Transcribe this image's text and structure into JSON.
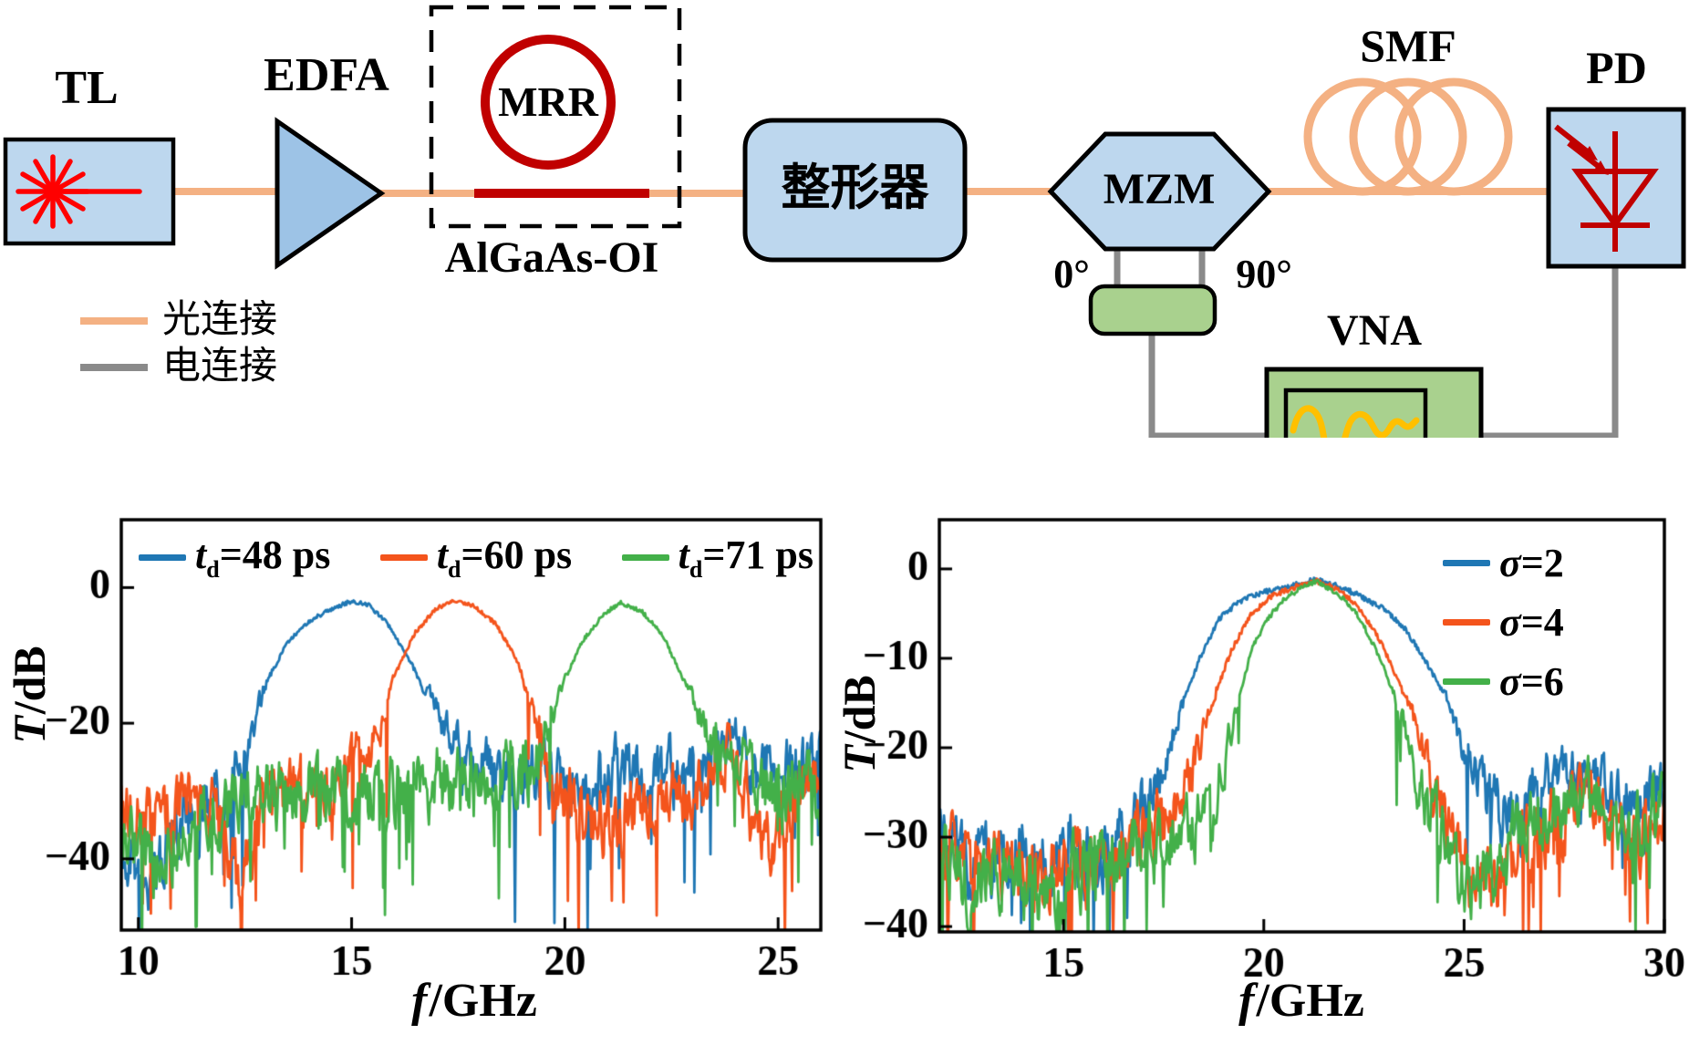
{
  "diagram": {
    "components": {
      "tl": "TL",
      "edfa": "EDFA",
      "mrr": "MRR",
      "platform": "AlGaAs-OI",
      "shaper": "整形器",
      "mzm": "MZM",
      "phase_0": "0°",
      "phase_90": "90°",
      "smf": "SMF",
      "pd": "PD",
      "vna": "VNA"
    },
    "legend": {
      "optical": "光连接",
      "electrical": "电连接"
    },
    "colors": {
      "optical_line": "#F4B183",
      "electrical_line": "#8A8A8A",
      "component_fill": "#BDD7EE",
      "amplifier_fill": "#9DC3E6",
      "ring_red": "#C00000",
      "laser_red": "#FF0000",
      "green_fill": "#A9D18E",
      "screen_wave_yellow": "#FFC000"
    }
  },
  "chart_data": [
    {
      "type": "line",
      "title": "",
      "xlabel": "f/GHz",
      "ylabel": "T/dB",
      "xlabel_parts": {
        "italic": "f",
        "rest": "/GHz"
      },
      "ylabel_parts": {
        "italic": "T",
        "rest": "/dB"
      },
      "xlim": [
        9.6,
        26
      ],
      "ylim": [
        -50.5,
        10
      ],
      "xticks": [
        10,
        15,
        20,
        25
      ],
      "yticks": [
        0,
        -20,
        -40
      ],
      "grid": false,
      "legend_position": "top-inside-horizontal",
      "noise": {
        "amplitude_db": 4.0,
        "spike_probability": 0.05,
        "spike_depth_db": 12
      },
      "series": [
        {
          "name": "td=48 ps",
          "name_sym": "t",
          "name_sub": "d",
          "name_rest": "=48 ps",
          "color": "#1F77B4",
          "seed": 11,
          "passband_center_ghz": 15.0,
          "peak_db": -2,
          "points": [
            [
              9.6,
              -38
            ],
            [
              10.2,
              -44
            ],
            [
              10.8,
              -36
            ],
            [
              11.5,
              -33
            ],
            [
              12.1,
              -30
            ],
            [
              12.5,
              -24
            ],
            [
              13,
              -14
            ],
            [
              13.5,
              -8
            ],
            [
              14,
              -5
            ],
            [
              14.5,
              -3.2
            ],
            [
              15,
              -2
            ],
            [
              15.4,
              -2.6
            ],
            [
              15.8,
              -5
            ],
            [
              16.3,
              -10
            ],
            [
              16.8,
              -16
            ],
            [
              17.4,
              -23
            ],
            [
              18,
              -27
            ],
            [
              18.6,
              -28
            ],
            [
              19.4,
              -27
            ],
            [
              20.2,
              -30
            ],
            [
              21,
              -28
            ],
            [
              21.8,
              -27
            ],
            [
              22.6,
              -28
            ],
            [
              23.4,
              -25
            ],
            [
              23.9,
              -22
            ],
            [
              24.4,
              -27
            ],
            [
              25,
              -26
            ],
            [
              25.5,
              -28
            ],
            [
              26,
              -24
            ]
          ]
        },
        {
          "name": "td=60 ps",
          "name_sym": "t",
          "name_sub": "d",
          "name_rest": "=60 ps",
          "color": "#F4541C",
          "seed": 22,
          "passband_center_ghz": 17.3,
          "peak_db": -2,
          "points": [
            [
              9.6,
              -30
            ],
            [
              10.3,
              -34
            ],
            [
              11,
              -31
            ],
            [
              11.8,
              -33
            ],
            [
              12.3,
              -44
            ],
            [
              12.9,
              -33
            ],
            [
              13.6,
              -30
            ],
            [
              14.3,
              -31
            ],
            [
              15,
              -28
            ],
            [
              15.6,
              -22
            ],
            [
              16,
              -13
            ],
            [
              16.5,
              -6.5
            ],
            [
              17,
              -3
            ],
            [
              17.4,
              -2
            ],
            [
              17.9,
              -2.8
            ],
            [
              18.4,
              -5.5
            ],
            [
              18.9,
              -11
            ],
            [
              19.3,
              -19
            ],
            [
              19.7,
              -28
            ],
            [
              20.3,
              -33
            ],
            [
              21,
              -35
            ],
            [
              21.8,
              -33
            ],
            [
              22.6,
              -31
            ],
            [
              23.3,
              -29
            ],
            [
              23.9,
              -24
            ],
            [
              24.6,
              -38
            ],
            [
              25.2,
              -33
            ],
            [
              26,
              -29
            ]
          ]
        },
        {
          "name": "td=71 ps",
          "name_sym": "t",
          "name_sub": "d",
          "name_rest": "=71 ps",
          "color": "#43B049",
          "seed": 33,
          "passband_center_ghz": 21.3,
          "peak_db": -2,
          "points": [
            [
              9.6,
              -36
            ],
            [
              10.4,
              -41
            ],
            [
              11.2,
              -37
            ],
            [
              12,
              -34
            ],
            [
              12.8,
              -31
            ],
            [
              13.6,
              -30
            ],
            [
              14.4,
              -29
            ],
            [
              15.2,
              -30
            ],
            [
              16,
              -30
            ],
            [
              16.8,
              -29
            ],
            [
              17.5,
              -28
            ],
            [
              18.2,
              -30
            ],
            [
              19,
              -28
            ],
            [
              19.4,
              -24
            ],
            [
              19.9,
              -15
            ],
            [
              20.4,
              -8
            ],
            [
              20.9,
              -4
            ],
            [
              21.3,
              -2.2
            ],
            [
              21.8,
              -3.5
            ],
            [
              22.3,
              -7
            ],
            [
              22.8,
              -14
            ],
            [
              23.3,
              -21
            ],
            [
              23.7,
              -26
            ],
            [
              24.1,
              -24
            ],
            [
              24.6,
              -29
            ],
            [
              25.1,
              -31
            ],
            [
              25.6,
              -27
            ],
            [
              26,
              -34
            ]
          ]
        }
      ]
    },
    {
      "type": "line",
      "title": "",
      "xlabel": "f/GHz",
      "ylabel": "T/dB",
      "xlabel_parts": {
        "italic": "f",
        "rest": "/GHz"
      },
      "ylabel_parts": {
        "italic": "T",
        "rest": "/dB"
      },
      "xlim": [
        11.9,
        30
      ],
      "ylim": [
        -40.6,
        5.5
      ],
      "xticks": [
        15,
        20,
        25,
        30
      ],
      "yticks": [
        0,
        -10,
        -20,
        -30,
        -40
      ],
      "grid": false,
      "legend_position": "top-right-inside-vertical",
      "noise": {
        "amplitude_db": 3.2,
        "spike_probability": 0.04,
        "spike_depth_db": 8
      },
      "series": [
        {
          "name": "σ=2",
          "name_sym": "σ",
          "name_sub": "",
          "name_rest": "=2",
          "color": "#1F77B4",
          "seed": 44,
          "passband_center_ghz": 21.3,
          "peak_db": -1,
          "points": [
            [
              11.9,
              -30
            ],
            [
              12.8,
              -33
            ],
            [
              13.6,
              -31
            ],
            [
              14.4,
              -34
            ],
            [
              15.2,
              -31
            ],
            [
              16,
              -32
            ],
            [
              16.8,
              -28
            ],
            [
              17.4,
              -23
            ],
            [
              17.9,
              -16
            ],
            [
              18.4,
              -10
            ],
            [
              18.9,
              -5.5
            ],
            [
              19.4,
              -3.6
            ],
            [
              20,
              -2.6
            ],
            [
              20.6,
              -2
            ],
            [
              21.3,
              -1.2
            ],
            [
              21.9,
              -2
            ],
            [
              22.4,
              -3
            ],
            [
              23,
              -4.5
            ],
            [
              23.5,
              -6.5
            ],
            [
              24,
              -10
            ],
            [
              24.5,
              -14
            ],
            [
              25,
              -20
            ],
            [
              25.5,
              -25
            ],
            [
              26,
              -28
            ],
            [
              26.7,
              -26
            ],
            [
              27.4,
              -23
            ],
            [
              28.1,
              -22
            ],
            [
              28.8,
              -25
            ],
            [
              29.4,
              -26
            ],
            [
              30,
              -23
            ]
          ]
        },
        {
          "name": "σ=4",
          "name_sym": "σ",
          "name_sub": "",
          "name_rest": "=4",
          "color": "#F4541C",
          "seed": 55,
          "passband_center_ghz": 21.3,
          "peak_db": -1.2,
          "points": [
            [
              11.9,
              -31
            ],
            [
              12.8,
              -34
            ],
            [
              13.6,
              -32
            ],
            [
              14.4,
              -35
            ],
            [
              15.2,
              -33
            ],
            [
              16,
              -34
            ],
            [
              16.8,
              -30
            ],
            [
              17.6,
              -28
            ],
            [
              18.2,
              -23
            ],
            [
              18.7,
              -15
            ],
            [
              19.2,
              -9
            ],
            [
              19.7,
              -5
            ],
            [
              20.2,
              -3
            ],
            [
              20.8,
              -2
            ],
            [
              21.3,
              -1.3
            ],
            [
              21.9,
              -2.4
            ],
            [
              22.4,
              -4.5
            ],
            [
              22.9,
              -8
            ],
            [
              23.4,
              -13
            ],
            [
              23.9,
              -19
            ],
            [
              24.4,
              -26
            ],
            [
              24.9,
              -33
            ],
            [
              25.4,
              -36
            ],
            [
              26,
              -33
            ],
            [
              26.8,
              -30
            ],
            [
              27.6,
              -28
            ],
            [
              28.4,
              -27
            ],
            [
              29.2,
              -31
            ],
            [
              30,
              -28
            ]
          ]
        },
        {
          "name": "σ=6",
          "name_sym": "σ",
          "name_sub": "",
          "name_rest": "=6",
          "color": "#43B049",
          "seed": 66,
          "passband_center_ghz": 21.3,
          "peak_db": -1.2,
          "points": [
            [
              11.9,
              -32
            ],
            [
              12.8,
              -35
            ],
            [
              13.6,
              -33
            ],
            [
              14.4,
              -36
            ],
            [
              15.2,
              -34
            ],
            [
              16,
              -33
            ],
            [
              16.8,
              -31
            ],
            [
              17.6,
              -30
            ],
            [
              18.4,
              -29
            ],
            [
              18.9,
              -24
            ],
            [
              19.3,
              -16
            ],
            [
              19.7,
              -9
            ],
            [
              20.1,
              -5.5
            ],
            [
              20.6,
              -3
            ],
            [
              21.3,
              -1.3
            ],
            [
              21.9,
              -3
            ],
            [
              22.4,
              -5.5
            ],
            [
              22.9,
              -10
            ],
            [
              23.4,
              -16
            ],
            [
              23.8,
              -23
            ],
            [
              24.2,
              -28
            ],
            [
              24.7,
              -32
            ],
            [
              25.2,
              -36
            ],
            [
              25.8,
              -32
            ],
            [
              26.6,
              -29
            ],
            [
              27.4,
              -27
            ],
            [
              28.2,
              -26
            ],
            [
              29,
              -30
            ],
            [
              30,
              -27
            ]
          ]
        }
      ]
    }
  ]
}
